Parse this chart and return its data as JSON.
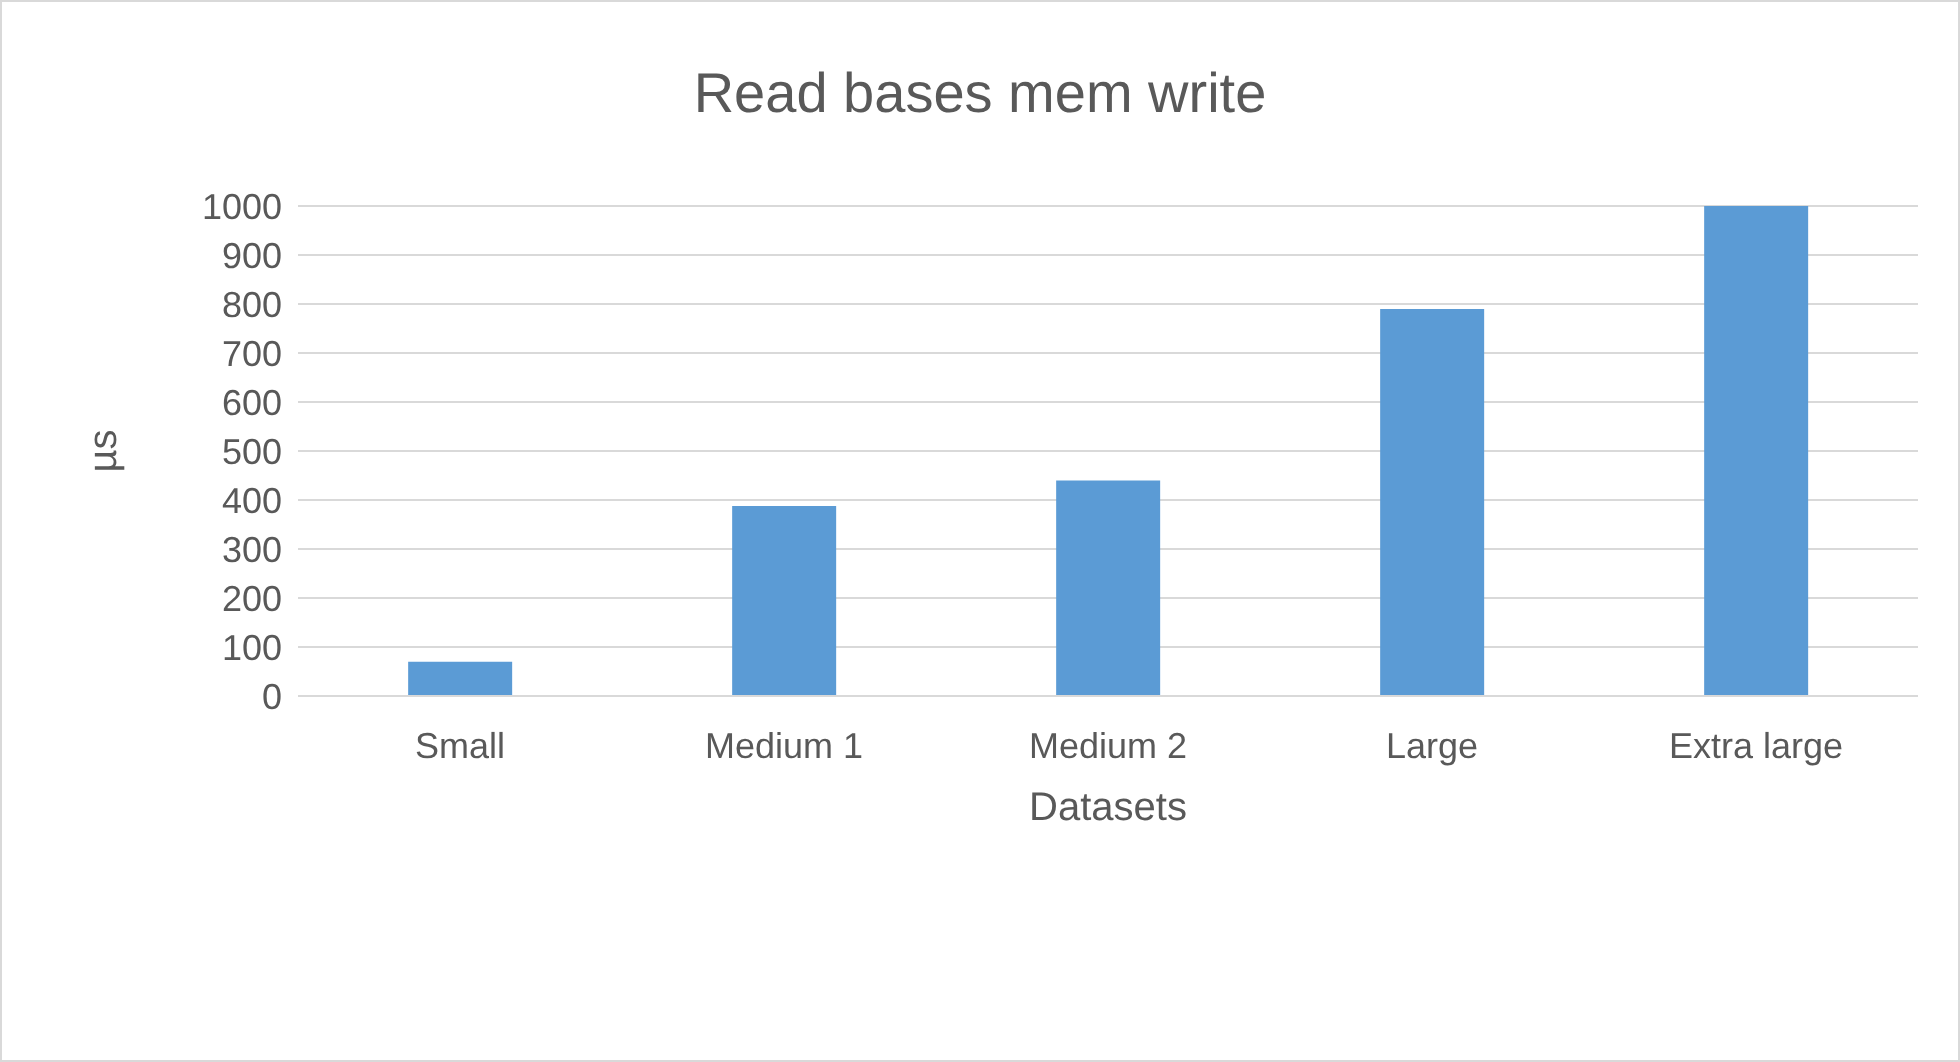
{
  "chart_data": {
    "type": "bar",
    "title": "Read bases mem write",
    "xlabel": "Datasets",
    "ylabel": "µs",
    "categories": [
      "Small",
      "Medium 1",
      "Medium 2",
      "Large",
      "Extra large"
    ],
    "values": [
      70,
      388,
      440,
      790,
      1000
    ],
    "color": "#5b9bd5",
    "ylim": [
      0,
      1000
    ],
    "yticks": [
      0,
      100,
      200,
      300,
      400,
      500,
      600,
      700,
      800,
      900,
      1000
    ],
    "grid": "y",
    "legend": false
  }
}
